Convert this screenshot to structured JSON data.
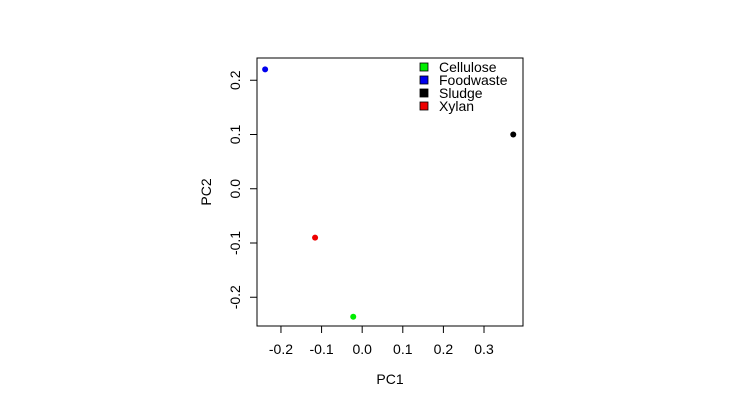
{
  "chart_data": {
    "type": "scatter",
    "x_label": "PC1",
    "y_label": "PC2",
    "xlim": [
      -0.259,
      0.396
    ],
    "ylim": [
      -0.253,
      0.241
    ],
    "xticks": [
      -0.2,
      -0.1,
      {
        "value": 0,
        "label": "0.0"
      },
      0.1,
      0.2,
      0.3
    ],
    "yticks": [
      -0.2,
      -0.1,
      {
        "value": 0,
        "label": "0.0"
      },
      0.1,
      0.2
    ],
    "legend": "top-right",
    "series": [
      {
        "name": "Cellulose",
        "color": "#00ee00",
        "x": [
          -0.022
        ],
        "values": [
          -0.236
        ]
      },
      {
        "name": "Foodwaste",
        "color": "#0000ee",
        "x": [
          -0.239
        ],
        "values": [
          0.22
        ]
      },
      {
        "name": "Sludge",
        "color": "#000000",
        "x": [
          0.372
        ],
        "values": [
          0.1
        ]
      },
      {
        "name": "Xylan",
        "color": "#ee0000",
        "x": [
          -0.116
        ],
        "values": [
          -0.09
        ]
      }
    ]
  }
}
